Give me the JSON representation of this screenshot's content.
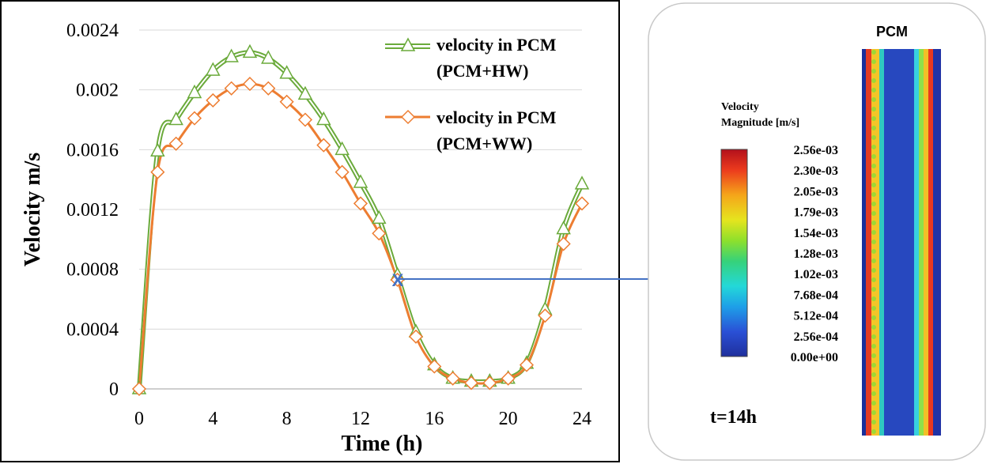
{
  "chart_data": {
    "type": "line",
    "xlabel": "Time (h)",
    "ylabel": "Velocity m/s",
    "xlim": [
      0,
      24
    ],
    "ylim": [
      0,
      0.0024
    ],
    "xticks": [
      "0",
      "4",
      "8",
      "12",
      "16",
      "20",
      "24"
    ],
    "yticks": [
      "0",
      "0.0004",
      "0.0008",
      "0.0012",
      "0.0016",
      "0.002",
      "0.0024"
    ],
    "x": [
      0,
      1,
      2,
      3,
      4,
      5,
      6,
      7,
      8,
      9,
      10,
      11,
      12,
      13,
      14,
      15,
      16,
      17,
      18,
      19,
      20,
      21,
      22,
      23,
      24
    ],
    "series": [
      {
        "name_line1": "velocity in PCM",
        "name_line2": "(PCM+HW)",
        "color": "#6aaa3a",
        "marker": "triangle",
        "values": [
          0,
          0.00159,
          0.0018,
          0.00198,
          0.00213,
          0.00222,
          0.00225,
          0.00221,
          0.00211,
          0.00197,
          0.0018,
          0.0016,
          0.00138,
          0.00114,
          0.00076,
          0.00038,
          0.00016,
          7e-05,
          5e-05,
          5e-05,
          7e-05,
          0.00017,
          0.00053,
          0.00107,
          0.00137
        ]
      },
      {
        "name_line1": "velocity in PCM",
        "name_line2": "(PCM+WW)",
        "color": "#ed7d31",
        "marker": "diamond",
        "values": [
          0,
          0.00145,
          0.00164,
          0.00181,
          0.00193,
          0.00201,
          0.00204,
          0.00201,
          0.00192,
          0.0018,
          0.00163,
          0.00145,
          0.00124,
          0.00104,
          0.00073,
          0.00035,
          0.00015,
          7e-05,
          4e-05,
          4e-05,
          7e-05,
          0.00016,
          0.00049,
          0.00097,
          0.00124
        ]
      }
    ],
    "annotation": {
      "marker": "X",
      "x": 14,
      "y": 0.00074
    }
  },
  "colorbar": {
    "title_line1": "Velocity",
    "title_line2": "Magnitude [m/s]",
    "ticks": [
      "2.56e-03",
      "2.30e-03",
      "2.05e-03",
      "1.79e-03",
      "1.54e-03",
      "1.28e-03",
      "1.02e-03",
      "7.68e-04",
      "5.12e-04",
      "2.56e-04",
      "0.00e+00"
    ]
  },
  "contour": {
    "label": "PCM",
    "time_label": "t=14h"
  },
  "colors": {
    "arrow": "#4472c4",
    "x_marker": "#4472c4"
  }
}
